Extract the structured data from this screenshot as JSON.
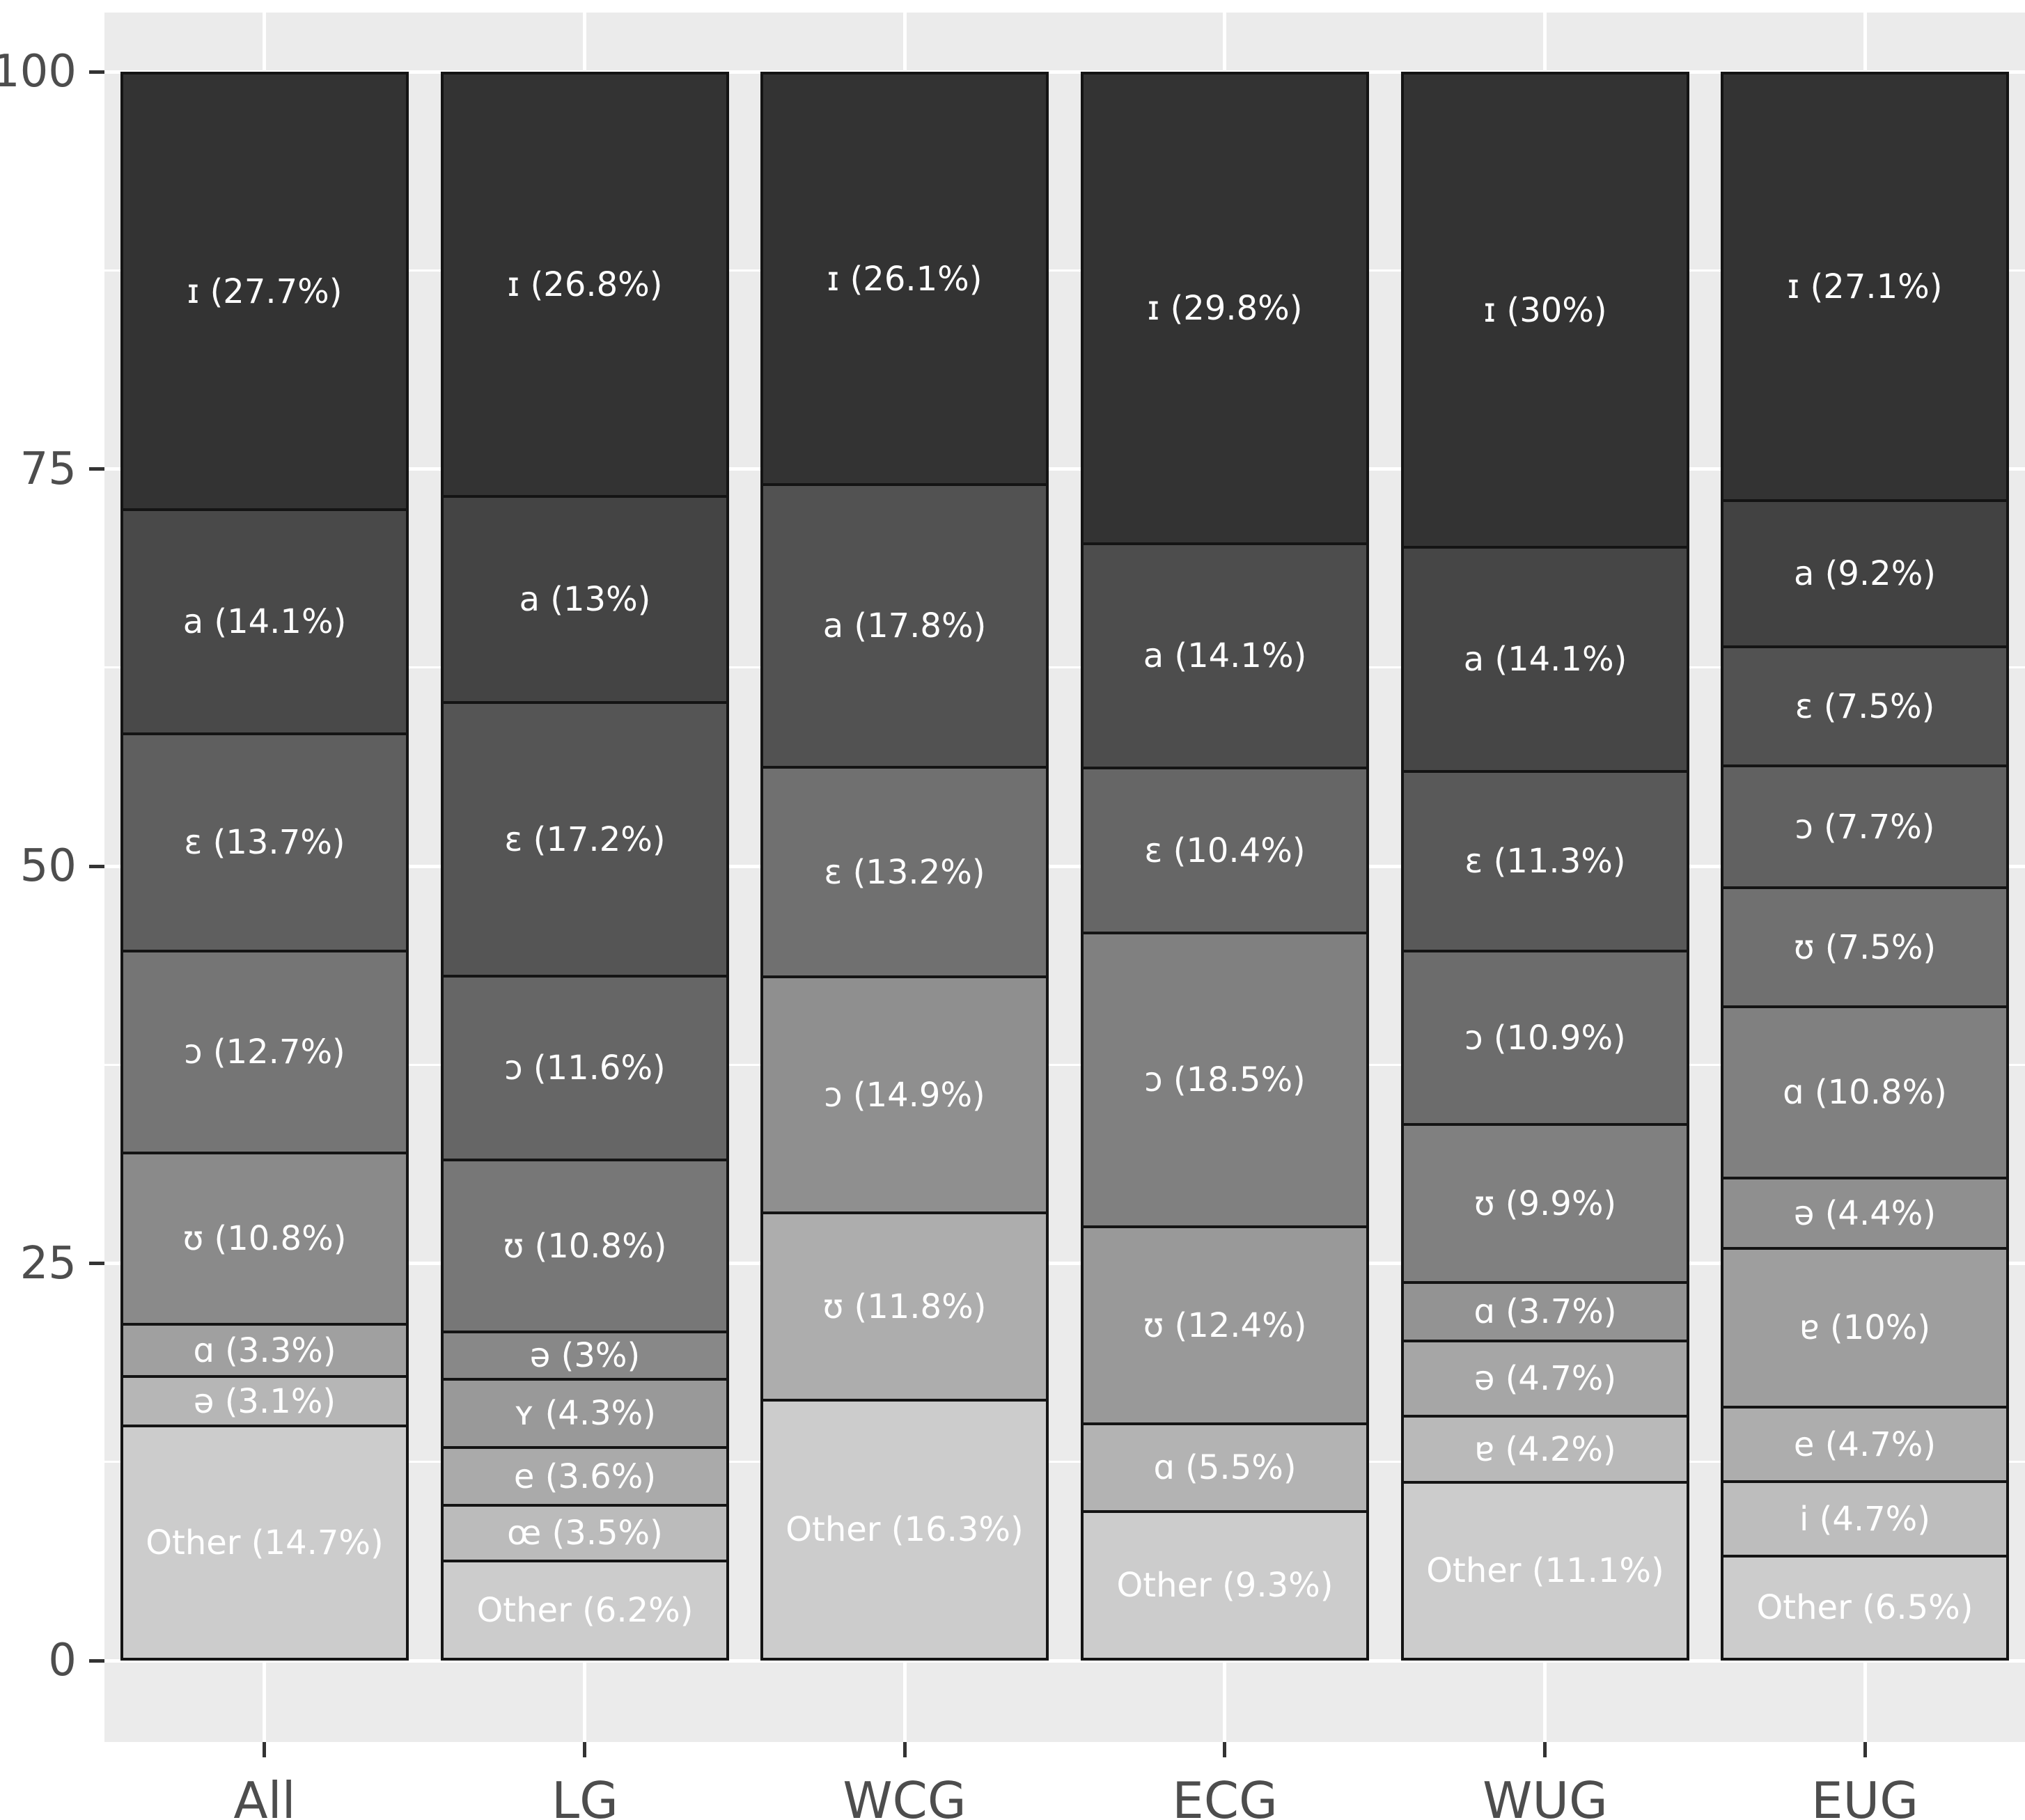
{
  "chart_data": {
    "type": "bar",
    "stacked": true,
    "title": "",
    "xlabel": "",
    "ylabel": "",
    "ylim": [
      0,
      100
    ],
    "yticks": [
      100,
      75,
      50,
      25,
      0
    ],
    "yticks_minor": [
      87.5,
      62.5,
      37.5,
      12.5
    ],
    "categories": [
      "All",
      "LG",
      "WCG",
      "ECG",
      "WUG",
      "EUG"
    ],
    "legend_position": "none",
    "grid": "white major and minor horizontal lines plus white vertical lines at category centers on grey panel",
    "panel_bg": "#ebebeb",
    "grid_color": "#ffffff",
    "bar_border_color": "#141414",
    "segment_label_color": "#ffffff",
    "axis_text_color": "#4d4d4d",
    "tick_color": "#333333",
    "fill_ramp": {
      "darkest": "#333333",
      "lightest": "#cccccc"
    },
    "bars": [
      {
        "category": "All",
        "segments": [
          {
            "symbol": "ɪ",
            "value": 27.7,
            "label": "ɪ (27.7%)"
          },
          {
            "symbol": "a",
            "value": 14.1,
            "label": "a (14.1%)"
          },
          {
            "symbol": "ɛ",
            "value": 13.7,
            "label": "ɛ (13.7%)"
          },
          {
            "symbol": "ɔ",
            "value": 12.7,
            "label": "ɔ (12.7%)"
          },
          {
            "symbol": "ʊ",
            "value": 10.8,
            "label": "ʊ (10.8%)"
          },
          {
            "symbol": "ɑ",
            "value": 3.3,
            "label": "ɑ (3.3%)"
          },
          {
            "symbol": "ə",
            "value": 3.1,
            "label": "ə (3.1%)"
          },
          {
            "symbol": "Other",
            "value": 14.7,
            "label": "Other (14.7%)"
          }
        ]
      },
      {
        "category": "LG",
        "segments": [
          {
            "symbol": "ɪ",
            "value": 26.8,
            "label": "ɪ (26.8%)"
          },
          {
            "symbol": "a",
            "value": 13.0,
            "label": "a (13%)"
          },
          {
            "symbol": "ɛ",
            "value": 17.2,
            "label": "ɛ (17.2%)"
          },
          {
            "symbol": "ɔ",
            "value": 11.6,
            "label": "ɔ (11.6%)"
          },
          {
            "symbol": "ʊ",
            "value": 10.8,
            "label": "ʊ (10.8%)"
          },
          {
            "symbol": "ə",
            "value": 3.0,
            "label": "ə (3%)"
          },
          {
            "symbol": "ʏ",
            "value": 4.3,
            "label": "ʏ (4.3%)"
          },
          {
            "symbol": "e",
            "value": 3.6,
            "label": "e (3.6%)"
          },
          {
            "symbol": "œ",
            "value": 3.5,
            "label": "œ (3.5%)"
          },
          {
            "symbol": "Other",
            "value": 6.2,
            "label": "Other (6.2%)"
          }
        ]
      },
      {
        "category": "WCG",
        "segments": [
          {
            "symbol": "ɪ",
            "value": 26.1,
            "label": "ɪ (26.1%)"
          },
          {
            "symbol": "a",
            "value": 17.8,
            "label": "a (17.8%)"
          },
          {
            "symbol": "ɛ",
            "value": 13.2,
            "label": "ɛ (13.2%)"
          },
          {
            "symbol": "ɔ",
            "value": 14.9,
            "label": "ɔ (14.9%)"
          },
          {
            "symbol": "ʊ",
            "value": 11.8,
            "label": "ʊ (11.8%)"
          },
          {
            "symbol": "Other",
            "value": 16.3,
            "label": "Other (16.3%)"
          }
        ]
      },
      {
        "category": "ECG",
        "segments": [
          {
            "symbol": "ɪ",
            "value": 29.8,
            "label": "ɪ (29.8%)"
          },
          {
            "symbol": "a",
            "value": 14.1,
            "label": "a (14.1%)"
          },
          {
            "symbol": "ɛ",
            "value": 10.4,
            "label": "ɛ (10.4%)"
          },
          {
            "symbol": "ɔ",
            "value": 18.5,
            "label": "ɔ (18.5%)"
          },
          {
            "symbol": "ʊ",
            "value": 12.4,
            "label": "ʊ (12.4%)"
          },
          {
            "symbol": "ɑ",
            "value": 5.5,
            "label": "ɑ (5.5%)"
          },
          {
            "symbol": "Other",
            "value": 9.3,
            "label": "Other (9.3%)"
          }
        ]
      },
      {
        "category": "WUG",
        "segments": [
          {
            "symbol": "ɪ",
            "value": 30.0,
            "label": "ɪ (30%)"
          },
          {
            "symbol": "a",
            "value": 14.1,
            "label": "a (14.1%)"
          },
          {
            "symbol": "ɛ",
            "value": 11.3,
            "label": "ɛ (11.3%)"
          },
          {
            "symbol": "ɔ",
            "value": 10.9,
            "label": "ɔ (10.9%)"
          },
          {
            "symbol": "ʊ",
            "value": 9.9,
            "label": "ʊ (9.9%)"
          },
          {
            "symbol": "ɑ",
            "value": 3.7,
            "label": "ɑ (3.7%)"
          },
          {
            "symbol": "ə",
            "value": 4.7,
            "label": "ə (4.7%)"
          },
          {
            "symbol": "ɐ",
            "value": 4.2,
            "label": "ɐ (4.2%)"
          },
          {
            "symbol": "Other",
            "value": 11.1,
            "label": "Other (11.1%)"
          }
        ]
      },
      {
        "category": "EUG",
        "segments": [
          {
            "symbol": "ɪ",
            "value": 27.1,
            "label": "ɪ (27.1%)"
          },
          {
            "symbol": "a",
            "value": 9.2,
            "label": "a (9.2%)"
          },
          {
            "symbol": "ɛ",
            "value": 7.5,
            "label": "ɛ (7.5%)"
          },
          {
            "symbol": "ɔ",
            "value": 7.7,
            "label": "ɔ (7.7%)"
          },
          {
            "symbol": "ʊ",
            "value": 7.5,
            "label": "ʊ (7.5%)"
          },
          {
            "symbol": "ɑ",
            "value": 10.8,
            "label": "ɑ (10.8%)"
          },
          {
            "symbol": "ə",
            "value": 4.4,
            "label": "ə (4.4%)"
          },
          {
            "symbol": "ɐ",
            "value": 10.0,
            "label": "ɐ (10%)"
          },
          {
            "symbol": "e",
            "value": 4.7,
            "label": "e (4.7%)"
          },
          {
            "symbol": "i",
            "value": 4.7,
            "label": "i (4.7%)"
          },
          {
            "symbol": "Other",
            "value": 6.5,
            "label": "Other (6.5%)"
          }
        ]
      }
    ]
  }
}
